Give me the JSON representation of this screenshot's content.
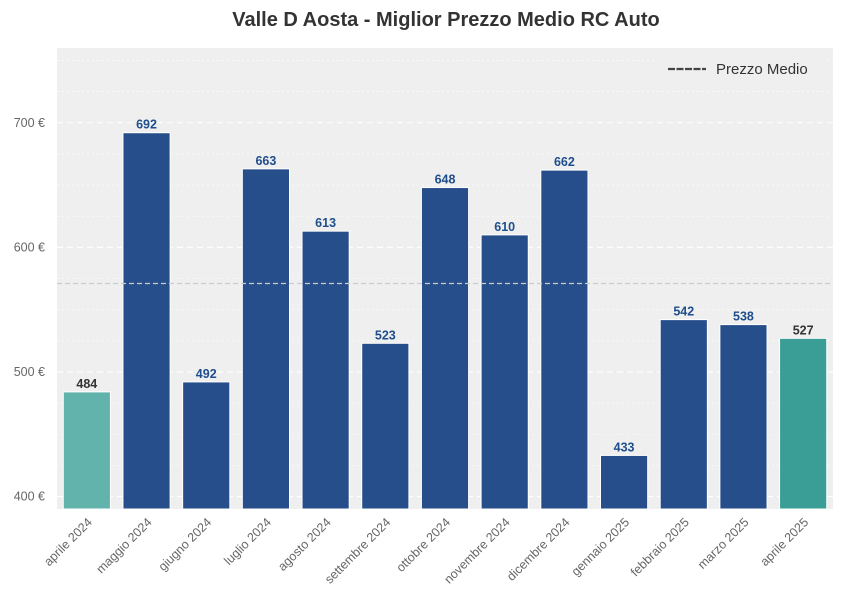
{
  "chart_data": {
    "type": "bar",
    "title": "Valle D Aosta - Miglior Prezzo Medio RC Auto",
    "xlabel": "",
    "ylabel": "",
    "categories": [
      "aprile 2024",
      "maggio 2024",
      "giugno 2024",
      "luglio 2024",
      "agosto 2024",
      "settembre 2024",
      "ottobre 2024",
      "novembre 2024",
      "dicembre 2024",
      "gennaio 2025",
      "febbraio 2025",
      "marzo 2025",
      "aprile 2025"
    ],
    "values": [
      484,
      692,
      492,
      663,
      613,
      523,
      648,
      610,
      662,
      433,
      542,
      538,
      527
    ],
    "value_labels": [
      "484",
      "692",
      "492",
      "663",
      "613",
      "523",
      "648",
      "610",
      "662",
      "433",
      "542",
      "538",
      "527"
    ],
    "bar_colors": [
      "#63b3ad",
      "#264e8a",
      "#264e8a",
      "#264e8a",
      "#264e8a",
      "#264e8a",
      "#264e8a",
      "#264e8a",
      "#264e8a",
      "#264e8a",
      "#264e8a",
      "#264e8a",
      "#3a9e96"
    ],
    "label_colors": [
      "#333333",
      "#1f4e8c",
      "#1f4e8c",
      "#1f4e8c",
      "#1f4e8c",
      "#1f4e8c",
      "#1f4e8c",
      "#1f4e8c",
      "#1f4e8c",
      "#1f4e8c",
      "#1f4e8c",
      "#1f4e8c",
      "#333333"
    ],
    "ylim": [
      390,
      760
    ],
    "yticks": [
      400,
      500,
      600,
      700
    ],
    "ytick_labels": [
      "400 €",
      "500 €",
      "600 €",
      "700 €"
    ],
    "mean_line": {
      "value": 571,
      "label": "Prezzo Medio"
    },
    "legend": {
      "position": "top-right",
      "entries": [
        "Prezzo Medio"
      ]
    },
    "grid": true,
    "colors": {
      "plot_bg": "#efefef",
      "grid": "#ffffff",
      "mean_line": "#cccccc",
      "legend_line": "#444444"
    }
  }
}
